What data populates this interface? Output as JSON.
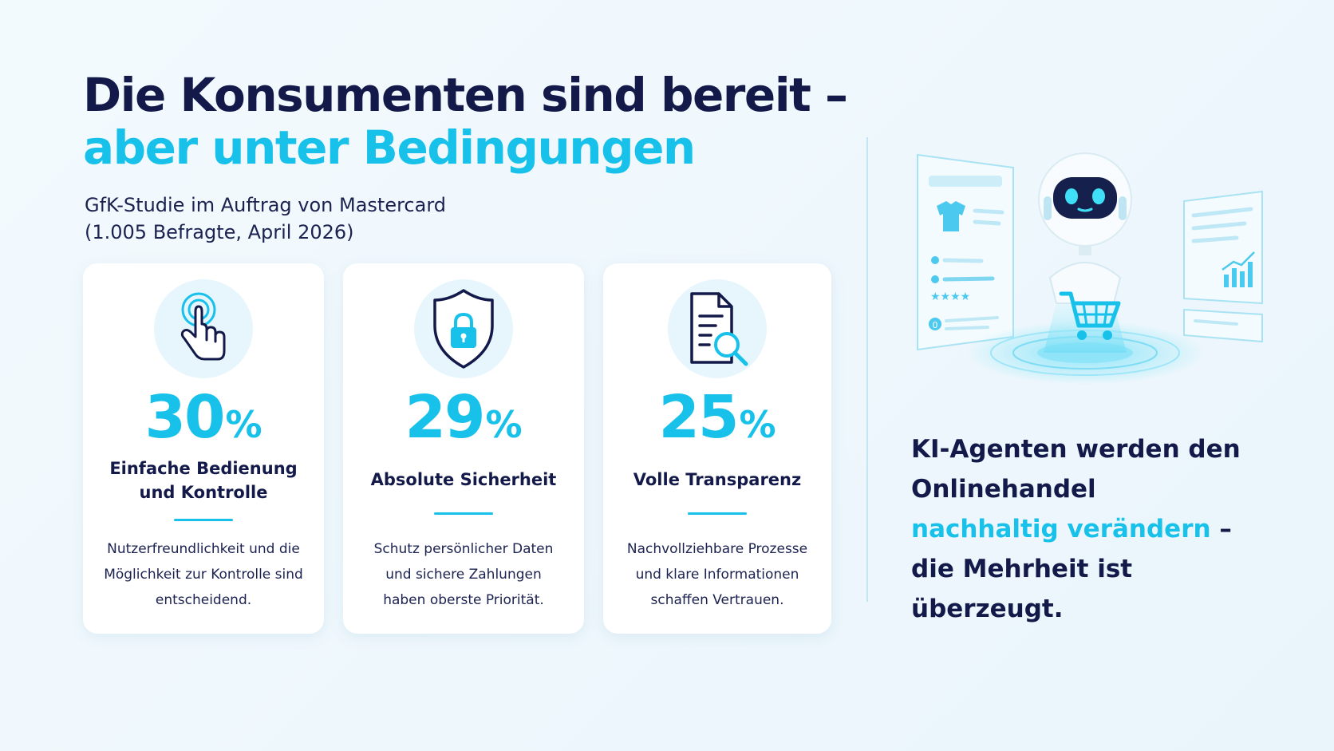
{
  "headline": {
    "line1": "Die Konsumenten sind bereit –",
    "line2": "aber unter Bedingungen"
  },
  "subtitle": {
    "line1": "GfK-Studie im Auftrag von Mastercard",
    "line2": "(1.005 Befragte, April 2026)"
  },
  "accent_color": "#17c1ea",
  "text_color": "#131a4a",
  "cards": [
    {
      "icon": "touch-hand-icon",
      "value": "30",
      "unit": "%",
      "label_line1": "Einfache Bedienung",
      "label_line2": "und Kontrolle",
      "desc_line1": "Nutzerfreundlichkeit und die",
      "desc_line2": "Möglichkeit zur Kontrolle sind",
      "desc_line3": "entscheidend."
    },
    {
      "icon": "shield-lock-icon",
      "value": "29",
      "unit": "%",
      "label_line1": "Absolute Sicherheit",
      "desc_line1": "Schutz persönlicher Daten",
      "desc_line2": "und sichere Zahlungen",
      "desc_line3": "haben oberste Priorität."
    },
    {
      "icon": "document-search-icon",
      "value": "25",
      "unit": "%",
      "label_line1": "Volle Transparenz",
      "desc_line1": "Nachvollziehbare Prozesse",
      "desc_line2": "und klare Informationen",
      "desc_line3": "schaffen Vertrauen."
    }
  ],
  "illustration": {
    "subject": "robot-shopping-cart-illustration",
    "stars_text": "★★★★",
    "badge_text": "0"
  },
  "claim": {
    "part1": "KI-Agenten werden den Onlinehandel ",
    "highlight": "nachhaltig verändern",
    "part2": " – die Mehrheit ist überzeugt."
  }
}
